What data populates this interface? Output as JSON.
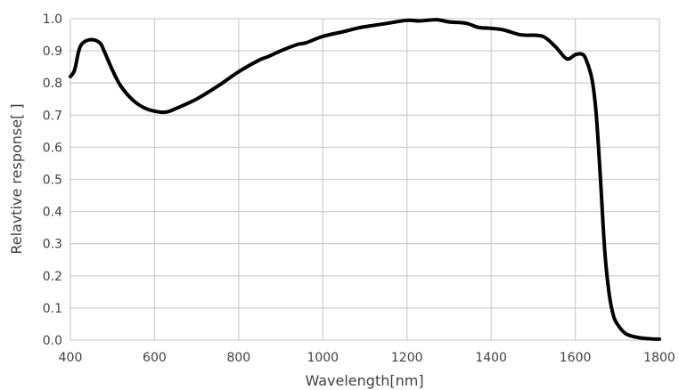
{
  "chart_data": {
    "type": "line",
    "title": "",
    "xlabel": "Wavelength[nm]",
    "ylabel": "Relavtive response[ ]",
    "xlim": [
      400,
      1800
    ],
    "ylim": [
      0,
      1.0
    ],
    "x_ticks": [
      400,
      600,
      800,
      1000,
      1200,
      1400,
      1600,
      1800
    ],
    "x_tick_labels": [
      "400",
      "600",
      "800",
      "1000",
      "1200",
      "1400",
      "1600",
      "1800"
    ],
    "y_ticks": [
      0,
      0.1,
      0.2,
      0.3,
      0.4,
      0.5,
      0.6,
      0.7,
      0.8,
      0.9,
      1.0
    ],
    "y_tick_labels": [
      "0.0",
      "0.1",
      "0.2",
      "0.3",
      "0.4",
      "0.5",
      "0.6",
      "0.7",
      "0.8",
      "0.9",
      "1.0"
    ],
    "grid": true,
    "legend": "none",
    "series": [
      {
        "color": "#000000",
        "x": [
          400,
          410,
          420,
          430,
          450,
          470,
          480,
          500,
          520,
          550,
          580,
          610,
          630,
          650,
          700,
          750,
          800,
          850,
          870,
          900,
          940,
          960,
          1000,
          1050,
          1080,
          1100,
          1150,
          1200,
          1230,
          1270,
          1300,
          1340,
          1370,
          1400,
          1430,
          1470,
          1510,
          1530,
          1555,
          1580,
          1600,
          1615,
          1625,
          1640,
          1650,
          1660,
          1670,
          1680,
          1690,
          1700,
          1720,
          1750,
          1780,
          1800
        ],
        "y": [
          0.82,
          0.84,
          0.9,
          0.925,
          0.935,
          0.925,
          0.9,
          0.84,
          0.79,
          0.745,
          0.72,
          0.71,
          0.71,
          0.72,
          0.75,
          0.79,
          0.835,
          0.872,
          0.882,
          0.9,
          0.92,
          0.925,
          0.945,
          0.96,
          0.97,
          0.975,
          0.985,
          0.995,
          0.993,
          0.997,
          0.99,
          0.986,
          0.973,
          0.97,
          0.965,
          0.95,
          0.948,
          0.94,
          0.91,
          0.875,
          0.888,
          0.89,
          0.875,
          0.81,
          0.7,
          0.5,
          0.28,
          0.15,
          0.08,
          0.05,
          0.02,
          0.008,
          0.004,
          0.003
        ]
      }
    ]
  }
}
